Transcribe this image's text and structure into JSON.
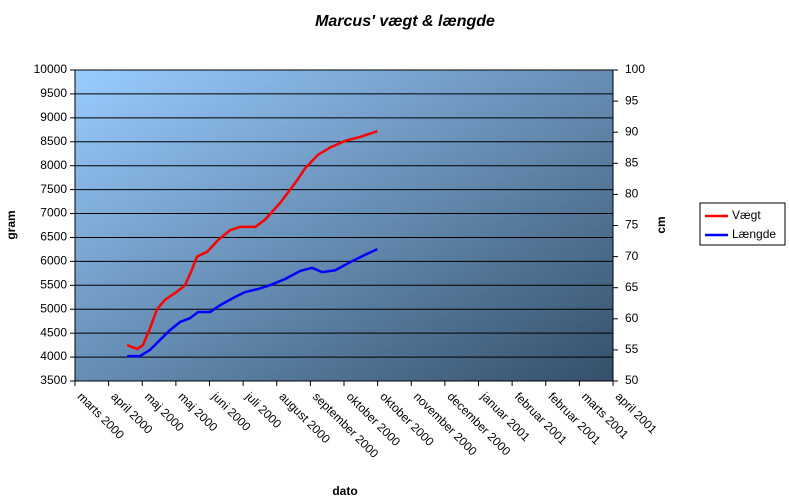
{
  "chart_data": {
    "type": "line",
    "title": "Marcus' vægt & længde",
    "x_label": "dato",
    "y_label": "gram",
    "y2_label": "cm",
    "xlim": [
      0,
      16
    ],
    "xticks": [
      {
        "value": 0,
        "label": "marts 2000"
      },
      {
        "value": 1,
        "label": "april 2000"
      },
      {
        "value": 2,
        "label": "maj 2000"
      },
      {
        "value": 3,
        "label": "maj 2000"
      },
      {
        "value": 4,
        "label": "juni 2000"
      },
      {
        "value": 5,
        "label": "juli 2000"
      },
      {
        "value": 6,
        "label": "august 2000"
      },
      {
        "value": 7,
        "label": "september 2000"
      },
      {
        "value": 8,
        "label": "oktober 2000"
      },
      {
        "value": 9,
        "label": "oktober 2000"
      },
      {
        "value": 10,
        "label": "november 2000"
      },
      {
        "value": 11,
        "label": "december 2000"
      },
      {
        "value": 12,
        "label": "januar 2001"
      },
      {
        "value": 13,
        "label": "februar 2001"
      },
      {
        "value": 14,
        "label": "februar 2001"
      },
      {
        "value": 15,
        "label": "marts 2001"
      },
      {
        "value": 16,
        "label": "april 2001"
      }
    ],
    "ylim": [
      3500,
      10000
    ],
    "yticks": [
      3500,
      4000,
      4500,
      5000,
      5500,
      6000,
      6500,
      7000,
      7500,
      8000,
      8500,
      9000,
      9500,
      10000
    ],
    "y2lim": [
      50,
      100
    ],
    "y2ticks": [
      50,
      55,
      60,
      65,
      70,
      75,
      80,
      85,
      90,
      95,
      100
    ],
    "grid": true,
    "legend": "right",
    "series": [
      {
        "name": "Vægt",
        "color": "#ff0000",
        "x": [
          1.55,
          1.85,
          2.02,
          2.23,
          2.44,
          2.68,
          2.98,
          3.27,
          3.45,
          3.63,
          3.93,
          4.26,
          4.61,
          4.91,
          5.36,
          5.65,
          6.1,
          6.55,
          6.85,
          7.23,
          7.59,
          8.04,
          8.48,
          8.99
        ],
        "values": [
          4250,
          4170,
          4250,
          4600,
          5000,
          5200,
          5340,
          5500,
          5780,
          6100,
          6200,
          6450,
          6650,
          6720,
          6720,
          6870,
          7220,
          7640,
          7950,
          8230,
          8380,
          8520,
          8600,
          8720
        ]
      },
      {
        "name": "Længde",
        "color": "#0000ff",
        "axis": "y2",
        "x": [
          1.55,
          1.93,
          2.23,
          2.53,
          2.83,
          3.13,
          3.42,
          3.66,
          4.02,
          4.32,
          4.76,
          5.06,
          5.45,
          5.8,
          6.25,
          6.7,
          7.05,
          7.35,
          7.74,
          8.18,
          8.63,
          8.99
        ],
        "values": [
          54.0,
          54.0,
          55.0,
          56.6,
          58.2,
          59.5,
          60.1,
          61.1,
          61.1,
          62.2,
          63.5,
          64.3,
          64.8,
          65.4,
          66.4,
          67.7,
          68.2,
          67.5,
          67.8,
          69.1,
          70.3,
          71.2
        ]
      }
    ]
  }
}
